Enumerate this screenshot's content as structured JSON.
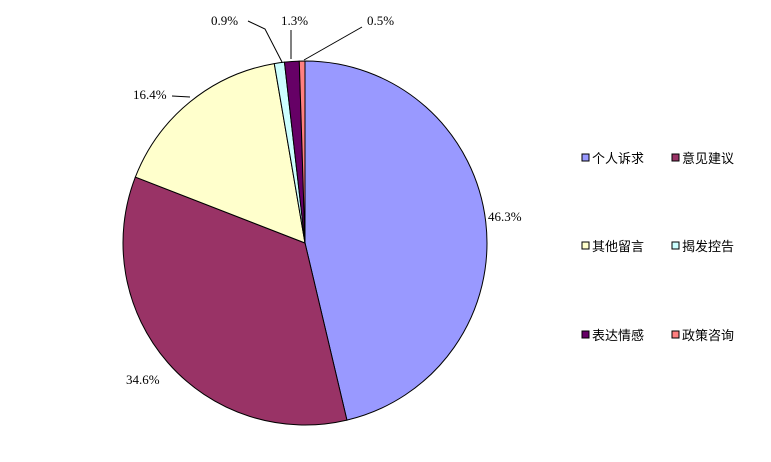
{
  "chart_data": {
    "type": "pie",
    "title": "",
    "series": [
      {
        "name": "个人诉求",
        "value": 46.3,
        "label": "46.3%",
        "color": "#9999FF"
      },
      {
        "name": "意见建议",
        "value": 34.6,
        "label": "34.6%",
        "color": "#993366"
      },
      {
        "name": "其他留言",
        "value": 16.4,
        "label": "16.4%",
        "color": "#FFFFCC"
      },
      {
        "name": "揭发控告",
        "value": 0.9,
        "label": "0.9%",
        "color": "#CCFFFF"
      },
      {
        "name": "表达情感",
        "value": 1.3,
        "label": "1.3%",
        "color": "#660066"
      },
      {
        "name": "政策咨询",
        "value": 0.5,
        "label": "0.5%",
        "color": "#FF8080"
      }
    ],
    "start_angle_deg": 0,
    "direction": "clockwise",
    "legend_position": "right",
    "legend_columns": 2
  }
}
